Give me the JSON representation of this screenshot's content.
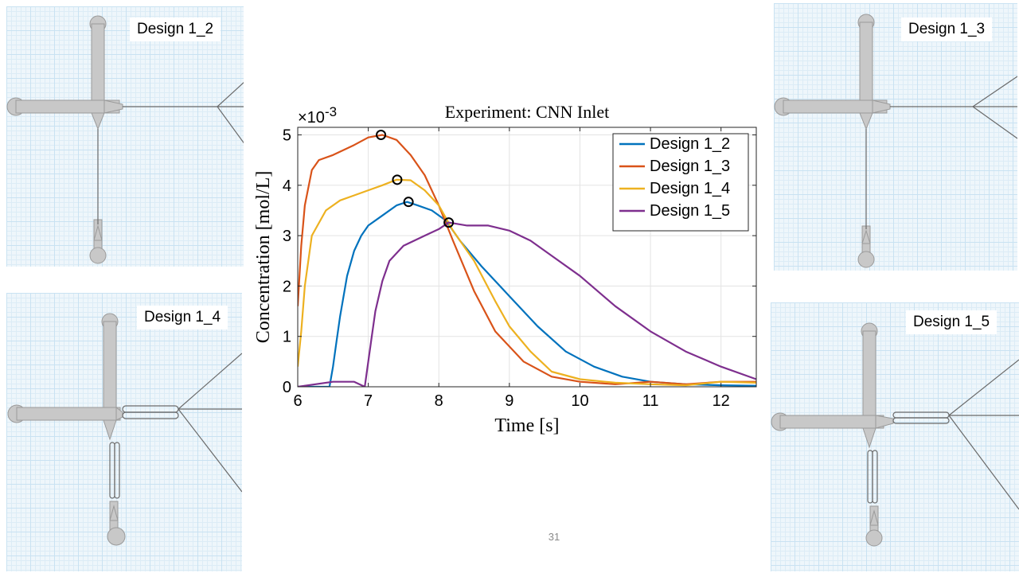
{
  "page_number": "31",
  "panels": {
    "top_left": "Design 1_2",
    "top_right": "Design 1_3",
    "bottom_left": "Design 1_4",
    "bottom_right": "Design 1_5"
  },
  "chart_data": {
    "type": "line",
    "title": "Experiment: CNN Inlet",
    "xlabel": "Time [s]",
    "ylabel": "Concentration [mol/L]",
    "y_exponent_label": "×10",
    "y_exponent": "-3",
    "xlim": [
      6,
      12.5
    ],
    "ylim": [
      0,
      0.00515
    ],
    "x_ticks": [
      6,
      7,
      8,
      9,
      10,
      11,
      12
    ],
    "y_ticks": [
      0,
      0.001,
      0.002,
      0.003,
      0.004,
      0.005
    ],
    "x_tick_labels": [
      "6",
      "7",
      "8",
      "9",
      "10",
      "11",
      "12"
    ],
    "y_tick_labels": [
      "0",
      "1",
      "2",
      "3",
      "4",
      "5"
    ],
    "grid": true,
    "legend_position": "top-right",
    "series": [
      {
        "name": "Design 1_2",
        "color": "#0072BD",
        "x": [
          6.0,
          6.3,
          6.45,
          6.5,
          6.55,
          6.6,
          6.7,
          6.8,
          6.9,
          7.0,
          7.2,
          7.4,
          7.55,
          7.7,
          7.9,
          8.1,
          8.3,
          8.6,
          9.0,
          9.4,
          9.8,
          10.2,
          10.6,
          11.0,
          11.5,
          12.0,
          12.5
        ],
        "y": [
          0.0,
          0.0,
          0.0,
          0.0004,
          0.0009,
          0.0014,
          0.0022,
          0.0027,
          0.003,
          0.0032,
          0.0034,
          0.0036,
          0.00367,
          0.0036,
          0.0035,
          0.0033,
          0.0029,
          0.0024,
          0.0018,
          0.0012,
          0.0007,
          0.0004,
          0.0002,
          0.0001,
          5e-05,
          3e-05,
          2e-05
        ]
      },
      {
        "name": "Design 1_3",
        "color": "#D95319",
        "x": [
          6.0,
          6.05,
          6.1,
          6.2,
          6.3,
          6.5,
          6.8,
          7.0,
          7.2,
          7.4,
          7.6,
          7.8,
          8.0,
          8.2,
          8.5,
          8.8,
          9.2,
          9.6,
          10.0,
          10.5,
          11.0,
          11.5,
          12.0,
          12.5
        ],
        "y": [
          0.0016,
          0.0028,
          0.0036,
          0.0043,
          0.0045,
          0.0046,
          0.0048,
          0.00495,
          0.005,
          0.0049,
          0.0046,
          0.0042,
          0.0036,
          0.0029,
          0.0019,
          0.0011,
          0.0005,
          0.0002,
          0.0001,
          5e-05,
          0.0001,
          5e-05,
          0.0001,
          0.0001
        ]
      },
      {
        "name": "Design 1_4",
        "color": "#EDB120",
        "x": [
          6.0,
          6.05,
          6.1,
          6.2,
          6.4,
          6.6,
          6.8,
          7.0,
          7.2,
          7.4,
          7.6,
          7.8,
          8.0,
          8.2,
          8.5,
          8.8,
          9.0,
          9.3,
          9.6,
          10.0,
          10.5,
          11.0,
          11.5,
          12.0,
          12.5
        ],
        "y": [
          0.0004,
          0.0011,
          0.002,
          0.003,
          0.0035,
          0.0037,
          0.0038,
          0.0039,
          0.004,
          0.00411,
          0.0041,
          0.0039,
          0.0036,
          0.0031,
          0.0025,
          0.0017,
          0.0012,
          0.0007,
          0.0003,
          0.00015,
          8e-05,
          5e-05,
          3e-05,
          0.0001,
          8e-05
        ]
      },
      {
        "name": "Design 1_5",
        "color": "#7E2F8E",
        "x": [
          6.0,
          6.5,
          6.8,
          6.95,
          7.0,
          7.05,
          7.1,
          7.2,
          7.3,
          7.5,
          7.8,
          8.0,
          8.14,
          8.4,
          8.7,
          9.0,
          9.3,
          9.6,
          10.0,
          10.5,
          11.0,
          11.5,
          12.0,
          12.5
        ],
        "y": [
          0.0,
          0.0001,
          0.0001,
          0.0,
          0.0005,
          0.001,
          0.0015,
          0.0021,
          0.0025,
          0.0028,
          0.003,
          0.00313,
          0.00326,
          0.0032,
          0.0032,
          0.0031,
          0.0029,
          0.0026,
          0.0022,
          0.0016,
          0.0011,
          0.0007,
          0.0004,
          0.00015
        ]
      }
    ],
    "peak_markers": [
      {
        "series": "Design 1_3",
        "x": 7.18,
        "y": 0.005
      },
      {
        "series": "Design 1_4",
        "x": 7.41,
        "y": 0.00411
      },
      {
        "series": "Design 1_2",
        "x": 7.57,
        "y": 0.00367
      },
      {
        "series": "Design 1_5",
        "x": 8.14,
        "y": 0.00326
      }
    ]
  }
}
